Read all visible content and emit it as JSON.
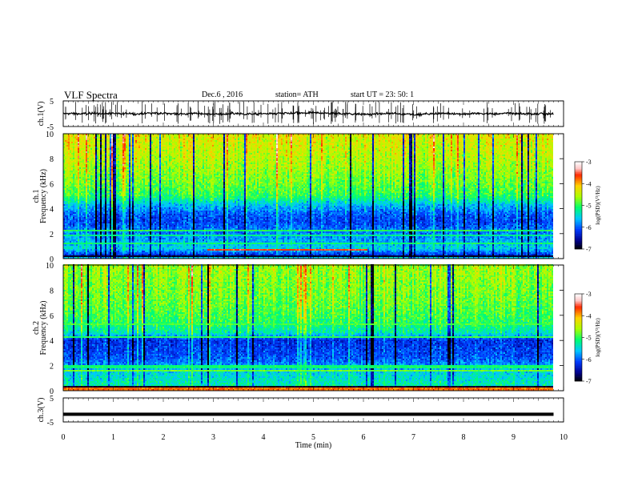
{
  "header": {
    "title": "VLF  Spectra",
    "date": "Dec.6  , 2016",
    "station": "station= ATH",
    "start_ut": "start  UT  =   23: 50: 1"
  },
  "chart_data": [
    {
      "type": "line",
      "panel": "ch1-waveform",
      "ylabel": "ch.1(V)",
      "ylim": [
        -5,
        5
      ],
      "ytick_labels": [
        "-5",
        "5"
      ],
      "xlim": [
        0,
        10
      ],
      "baseline_mean": 0,
      "x_end": 9.8
    },
    {
      "type": "heatmap",
      "panel": "ch1-spectrogram",
      "ylabel": "ch.1\nFrequency  (kHz)",
      "ylabel_lines": [
        "ch.1",
        "Frequency  (kHz)"
      ],
      "ylim": [
        0,
        10
      ],
      "ytick_labels": [
        "0",
        "2",
        "4",
        "6",
        "8",
        "10"
      ],
      "xlim": [
        0,
        10
      ],
      "x_end": 9.8,
      "colorbar": {
        "label": "log(PSD)(V²/Hz)",
        "range": [
          -7,
          -3
        ],
        "tick_labels": [
          "-7",
          "-6",
          "-5",
          "-4",
          "-3"
        ],
        "colors": [
          "#000000",
          "#00008b",
          "#0050ff",
          "#00c8ff",
          "#00ff66",
          "#b4ff00",
          "#ffd000",
          "#ff3000",
          "#ffc8c8",
          "#ffffff"
        ]
      },
      "profile_khz": [
        [
          0,
          -5.4
        ],
        [
          0.3,
          -6.2
        ],
        [
          0.8,
          -5.5
        ],
        [
          1.5,
          -5.7
        ],
        [
          2.3,
          -5.9
        ],
        [
          3.0,
          -6.1
        ],
        [
          3.5,
          -6.0
        ],
        [
          4.3,
          -5.6
        ],
        [
          5.0,
          -5.0
        ],
        [
          6.0,
          -4.8
        ],
        [
          8.0,
          -4.5
        ],
        [
          10.0,
          -4.3
        ]
      ]
    },
    {
      "type": "heatmap",
      "panel": "ch2-spectrogram",
      "ylabel": "ch.2\nFrequency  (kHz)",
      "ylabel_lines": [
        "ch.2",
        "Frequency  (kHz)"
      ],
      "ylim": [
        0,
        10
      ],
      "ytick_labels": [
        "0",
        "2",
        "4",
        "6",
        "8",
        "10"
      ],
      "xlim": [
        0,
        10
      ],
      "x_end": 9.8,
      "colorbar": {
        "label": "log(PSD)(V²/Hz)",
        "range": [
          -7,
          -3
        ],
        "tick_labels": [
          "-7",
          "-6",
          "-5",
          "-4",
          "-3"
        ],
        "colors": [
          "#000000",
          "#00008b",
          "#0050ff",
          "#00c8ff",
          "#00ff66",
          "#b4ff00",
          "#ffd000",
          "#ff3000",
          "#ffc8c8",
          "#ffffff"
        ]
      },
      "profile_khz": [
        [
          0,
          -5.2
        ],
        [
          0.5,
          -5.3
        ],
        [
          1.5,
          -5.5
        ],
        [
          2.5,
          -6.0
        ],
        [
          3.2,
          -6.1
        ],
        [
          4.0,
          -6.2
        ],
        [
          4.6,
          -5.3
        ],
        [
          5.5,
          -5.0
        ],
        [
          7.0,
          -4.8
        ],
        [
          10.0,
          -4.6
        ]
      ]
    },
    {
      "type": "line",
      "panel": "ch3-waveform",
      "ylabel": "ch.3(V)",
      "ylim": [
        -5,
        5
      ],
      "ytick_labels": [
        "-5",
        "5"
      ],
      "xlim": [
        0,
        10
      ],
      "baseline_mean": -1.8,
      "x_end": 9.8
    }
  ],
  "x_axis": {
    "label": "Time  (min)",
    "tick_labels": [
      "0",
      "1",
      "2",
      "3",
      "4",
      "5",
      "6",
      "7",
      "8",
      "9",
      "10"
    ]
  }
}
